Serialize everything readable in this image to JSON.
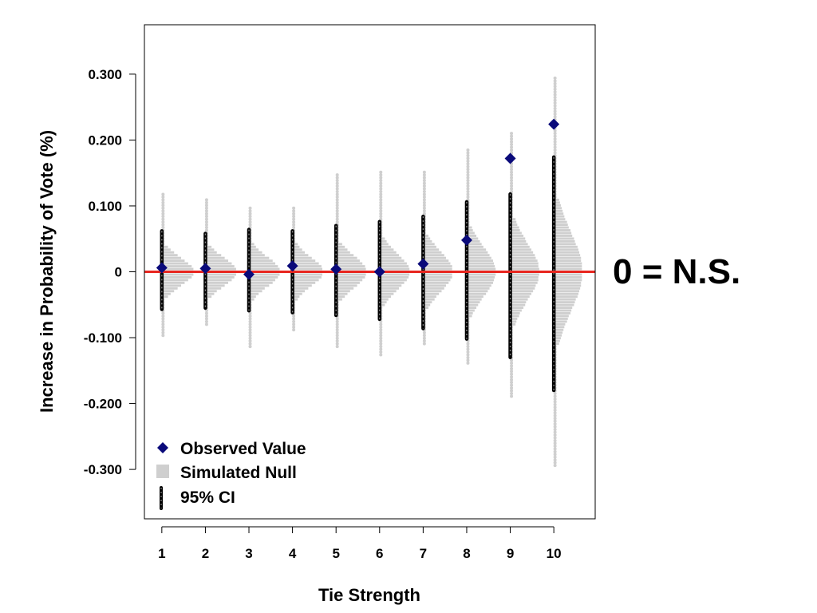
{
  "chart_data": {
    "type": "scatter",
    "xlabel": "Tie Strength",
    "ylabel": "Increase in Probability of Vote (%)",
    "categories": [
      "1",
      "2",
      "3",
      "4",
      "5",
      "6",
      "7",
      "8",
      "9",
      "10"
    ],
    "yticks": [
      0.3,
      0.2,
      0.1,
      0,
      -0.1,
      -0.2,
      -0.3
    ],
    "ytick_labels": [
      "0.300",
      "0.200",
      "0.100",
      "0",
      "-0.100",
      "-0.200",
      "-0.300"
    ],
    "ylim": [
      -0.375,
      0.375
    ],
    "xlim": [
      0.6,
      10.95
    ],
    "grid": false,
    "reference_line": {
      "y": 0,
      "color": "#e8261f"
    },
    "annotation": "0 = N.S.",
    "legend": {
      "placement": "bottom-left",
      "entries": [
        "Observed Value",
        "Simulated Null",
        "95% CI"
      ]
    },
    "series": [
      {
        "name": "Observed Value",
        "marker": "diamond",
        "color": "#0a0a7a",
        "values": [
          0.006,
          0.005,
          -0.004,
          0.009,
          0.004,
          0.0,
          0.012,
          0.048,
          0.172,
          0.224
        ]
      },
      {
        "name": "95% CI",
        "lower": [
          -0.057,
          -0.055,
          -0.059,
          -0.062,
          -0.066,
          -0.072,
          -0.086,
          -0.102,
          -0.13,
          -0.18
        ],
        "upper": [
          0.062,
          0.058,
          0.064,
          0.062,
          0.07,
          0.076,
          0.084,
          0.106,
          0.118,
          0.174
        ]
      },
      {
        "name": "Simulated Null",
        "color": "#cfcfcf",
        "min": [
          -0.097,
          -0.08,
          -0.117,
          -0.092,
          -0.117,
          -0.128,
          -0.113,
          -0.14,
          -0.193,
          -0.295
        ],
        "max": [
          0.118,
          0.112,
          0.1,
          0.1,
          0.148,
          0.155,
          0.155,
          0.185,
          0.21,
          0.298
        ],
        "spread": [
          0.021,
          0.021,
          0.022,
          0.022,
          0.024,
          0.027,
          0.03,
          0.036,
          0.043,
          0.06
        ]
      }
    ]
  }
}
